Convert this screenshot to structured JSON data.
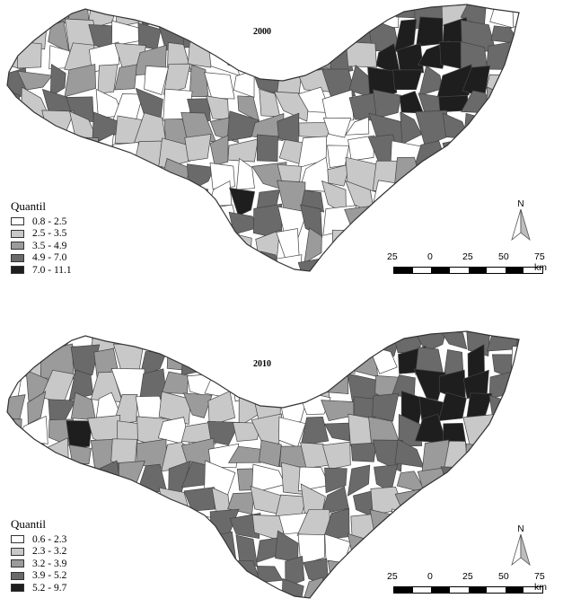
{
  "colors": {
    "c1": "#ffffff",
    "c2": "#c8c8c8",
    "c3": "#9b9b9b",
    "c4": "#6a6a6a",
    "c5": "#1e1e1e",
    "border": "#444444"
  },
  "north_label": "N",
  "scale": {
    "labels": [
      "25",
      "0",
      "25",
      "50",
      "75 km"
    ]
  },
  "maps": [
    {
      "year": "2000",
      "legend": {
        "title": "Quantil",
        "classes": [
          "0.8 - 2.5",
          "2.5 - 3.5",
          "3.5 - 4.9",
          "4.9 - 7.0",
          "7.0 - 11.1"
        ]
      }
    },
    {
      "year": "2010",
      "legend": {
        "title": "Quantil",
        "classes": [
          "0.6 - 2.3",
          "2.3 - 3.2",
          "3.2 - 3.9",
          "3.9 - 5.2",
          "5.2 - 9.7"
        ]
      }
    }
  ]
}
